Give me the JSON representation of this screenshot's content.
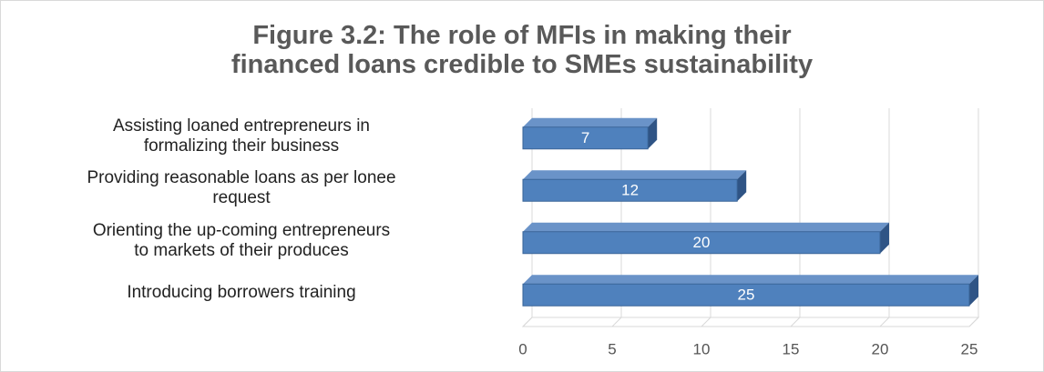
{
  "chart_data": {
    "type": "bar",
    "orientation": "horizontal",
    "title": "Figure 3.2: The role of MFIs in making their\nfinanced loans credible to SMEs sustainability",
    "categories": [
      "Assisting loaned entrepreneurs in\nformalizing their business",
      "Providing reasonable loans as per lonee\nrequest",
      "Orienting the up-coming entrepreneurs\nto markets of their produces",
      "Introducing borrowers training"
    ],
    "values": [
      7,
      12,
      20,
      25
    ],
    "color": "#4f81bd",
    "xlim": [
      0,
      25
    ],
    "xticks": [
      0,
      5,
      10,
      15,
      20,
      25
    ],
    "grid": true
  }
}
